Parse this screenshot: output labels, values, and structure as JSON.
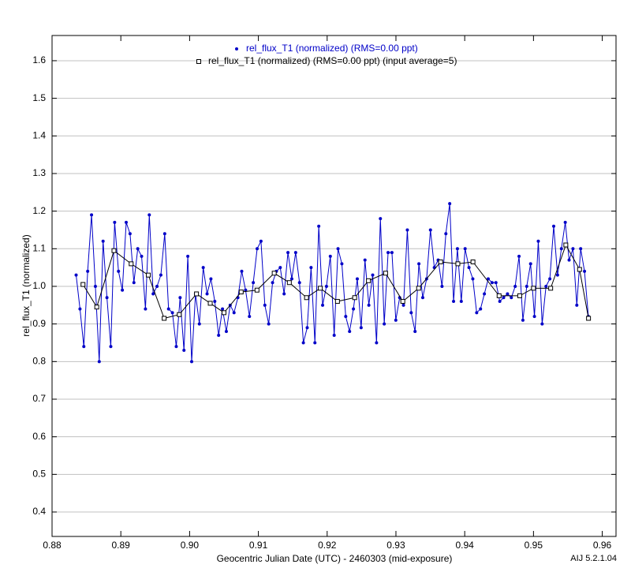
{
  "chart_data": {
    "type": "line",
    "xlabel": "Geocentric Julian Date (UTC) - 2460303 (mid-exposure)",
    "ylabel": "rel_flux_T1 (normalized)",
    "annotation": "AIJ 5.2.1.04",
    "xlim": [
      0.88,
      0.962
    ],
    "ylim": [
      0.335,
      1.667
    ],
    "xticks": [
      0.88,
      0.89,
      {
        "value": 0.9,
        "label": "0.90"
      },
      0.91,
      0.92,
      0.93,
      0.94,
      0.95,
      0.96
    ],
    "yticks": [
      0.4,
      0.5,
      0.6,
      0.7,
      0.8,
      0.9,
      {
        "value": 1,
        "label": "1.0"
      },
      1.1,
      1.2,
      1.3,
      1.4,
      1.5,
      1.6
    ],
    "grid": true,
    "legend": "top",
    "series": [
      {
        "name": "rel_flux_T1 (normalized) (RMS=0.00 ppt)",
        "color": "#0000c8",
        "marker": "dot",
        "x": [
          0.8835,
          0.88406,
          0.88462,
          0.88518,
          0.88574,
          0.8863,
          0.88686,
          0.88742,
          0.88798,
          0.88854,
          0.8891,
          0.88966,
          0.89022,
          0.89078,
          0.89134,
          0.8919,
          0.89246,
          0.89302,
          0.89358,
          0.89414,
          0.8947,
          0.89526,
          0.89582,
          0.89638,
          0.89694,
          0.8975,
          0.89806,
          0.89862,
          0.89918,
          0.89974,
          0.9003,
          0.90086,
          0.90142,
          0.90198,
          0.90254,
          0.9031,
          0.90366,
          0.90422,
          0.90478,
          0.90534,
          0.9059,
          0.90646,
          0.90702,
          0.90758,
          0.90814,
          0.9087,
          0.90926,
          0.90982,
          0.91038,
          0.91094,
          0.9115,
          0.91206,
          0.91262,
          0.91318,
          0.91374,
          0.9143,
          0.91486,
          0.91542,
          0.91598,
          0.91654,
          0.9171,
          0.91766,
          0.91822,
          0.91878,
          0.91934,
          0.9199,
          0.92046,
          0.92102,
          0.92158,
          0.92214,
          0.9227,
          0.92326,
          0.92382,
          0.92438,
          0.92494,
          0.9255,
          0.92606,
          0.92662,
          0.92718,
          0.92774,
          0.9283,
          0.92886,
          0.92942,
          0.92998,
          0.93054,
          0.9311,
          0.93166,
          0.93222,
          0.93278,
          0.93334,
          0.9339,
          0.93446,
          0.93502,
          0.93558,
          0.93614,
          0.9367,
          0.93726,
          0.93782,
          0.93838,
          0.93894,
          0.9395,
          0.94006,
          0.94062,
          0.94118,
          0.94174,
          0.9423,
          0.94286,
          0.94342,
          0.94398,
          0.94454,
          0.9451,
          0.94566,
          0.94622,
          0.94678,
          0.94734,
          0.9479,
          0.94846,
          0.94902,
          0.94958,
          0.95014,
          0.9507,
          0.95126,
          0.95182,
          0.95238,
          0.95294,
          0.9535,
          0.95406,
          0.95462,
          0.95518,
          0.95574,
          0.9563,
          0.95686,
          0.95742,
          0.95798
        ],
        "values": [
          1.03,
          0.94,
          0.84,
          1.04,
          1.19,
          1.0,
          0.8,
          1.12,
          0.97,
          0.84,
          1.17,
          1.04,
          0.99,
          1.17,
          1.14,
          1.01,
          1.1,
          1.08,
          0.94,
          1.19,
          0.98,
          1.0,
          1.03,
          1.14,
          0.94,
          0.93,
          0.84,
          0.97,
          0.83,
          1.08,
          0.8,
          0.98,
          0.9,
          1.05,
          0.98,
          1.02,
          0.96,
          0.87,
          0.94,
          0.88,
          0.95,
          0.93,
          0.97,
          1.04,
          0.99,
          0.92,
          1.01,
          1.1,
          1.12,
          0.95,
          0.9,
          1.01,
          1.04,
          1.05,
          0.98,
          1.09,
          1.02,
          1.09,
          1.01,
          0.85,
          0.89,
          1.05,
          0.85,
          1.16,
          0.95,
          1.0,
          1.08,
          0.87,
          1.1,
          1.06,
          0.92,
          0.88,
          0.94,
          1.02,
          0.89,
          1.07,
          0.95,
          1.03,
          0.85,
          1.18,
          0.9,
          1.09,
          1.09,
          0.91,
          0.97,
          0.95,
          1.15,
          0.93,
          0.88,
          1.06,
          0.97,
          1.02,
          1.15,
          1.05,
          1.07,
          1.0,
          1.14,
          1.22,
          0.96,
          1.1,
          0.96,
          1.1,
          1.05,
          1.02,
          0.93,
          0.94,
          0.98,
          1.02,
          1.01,
          1.01,
          0.96,
          0.97,
          0.98,
          0.97,
          1.0,
          1.08,
          0.91,
          1.0,
          1.06,
          0.92,
          1.12,
          0.9,
          1.0,
          1.02,
          1.16,
          1.03,
          1.1,
          1.17,
          1.07,
          1.1,
          0.95,
          1.1,
          1.04,
          0.92
        ]
      },
      {
        "name": "rel_flux_T1 (normalized) (RMS=0.00 ppt) (input average=5)",
        "color": "#000000",
        "marker": "square",
        "x": [
          0.8845,
          0.8865,
          0.889,
          0.8915,
          0.894,
          0.8963,
          0.8985,
          0.901,
          0.903,
          0.905,
          0.9075,
          0.9098,
          0.9123,
          0.9145,
          0.917,
          0.919,
          0.9215,
          0.924,
          0.926,
          0.9285,
          0.931,
          0.9333,
          0.9365,
          0.939,
          0.9412,
          0.945,
          0.948,
          0.95,
          0.9525,
          0.9547,
          0.9567,
          0.958
        ],
        "values": [
          1.005,
          0.945,
          1.095,
          1.06,
          1.03,
          0.915,
          0.925,
          0.98,
          0.955,
          0.93,
          0.985,
          0.99,
          1.035,
          1.01,
          0.97,
          0.995,
          0.96,
          0.97,
          1.015,
          1.035,
          0.96,
          0.995,
          1.065,
          1.06,
          1.065,
          0.975,
          0.975,
          0.995,
          0.995,
          1.11,
          1.045,
          0.915
        ]
      }
    ]
  }
}
